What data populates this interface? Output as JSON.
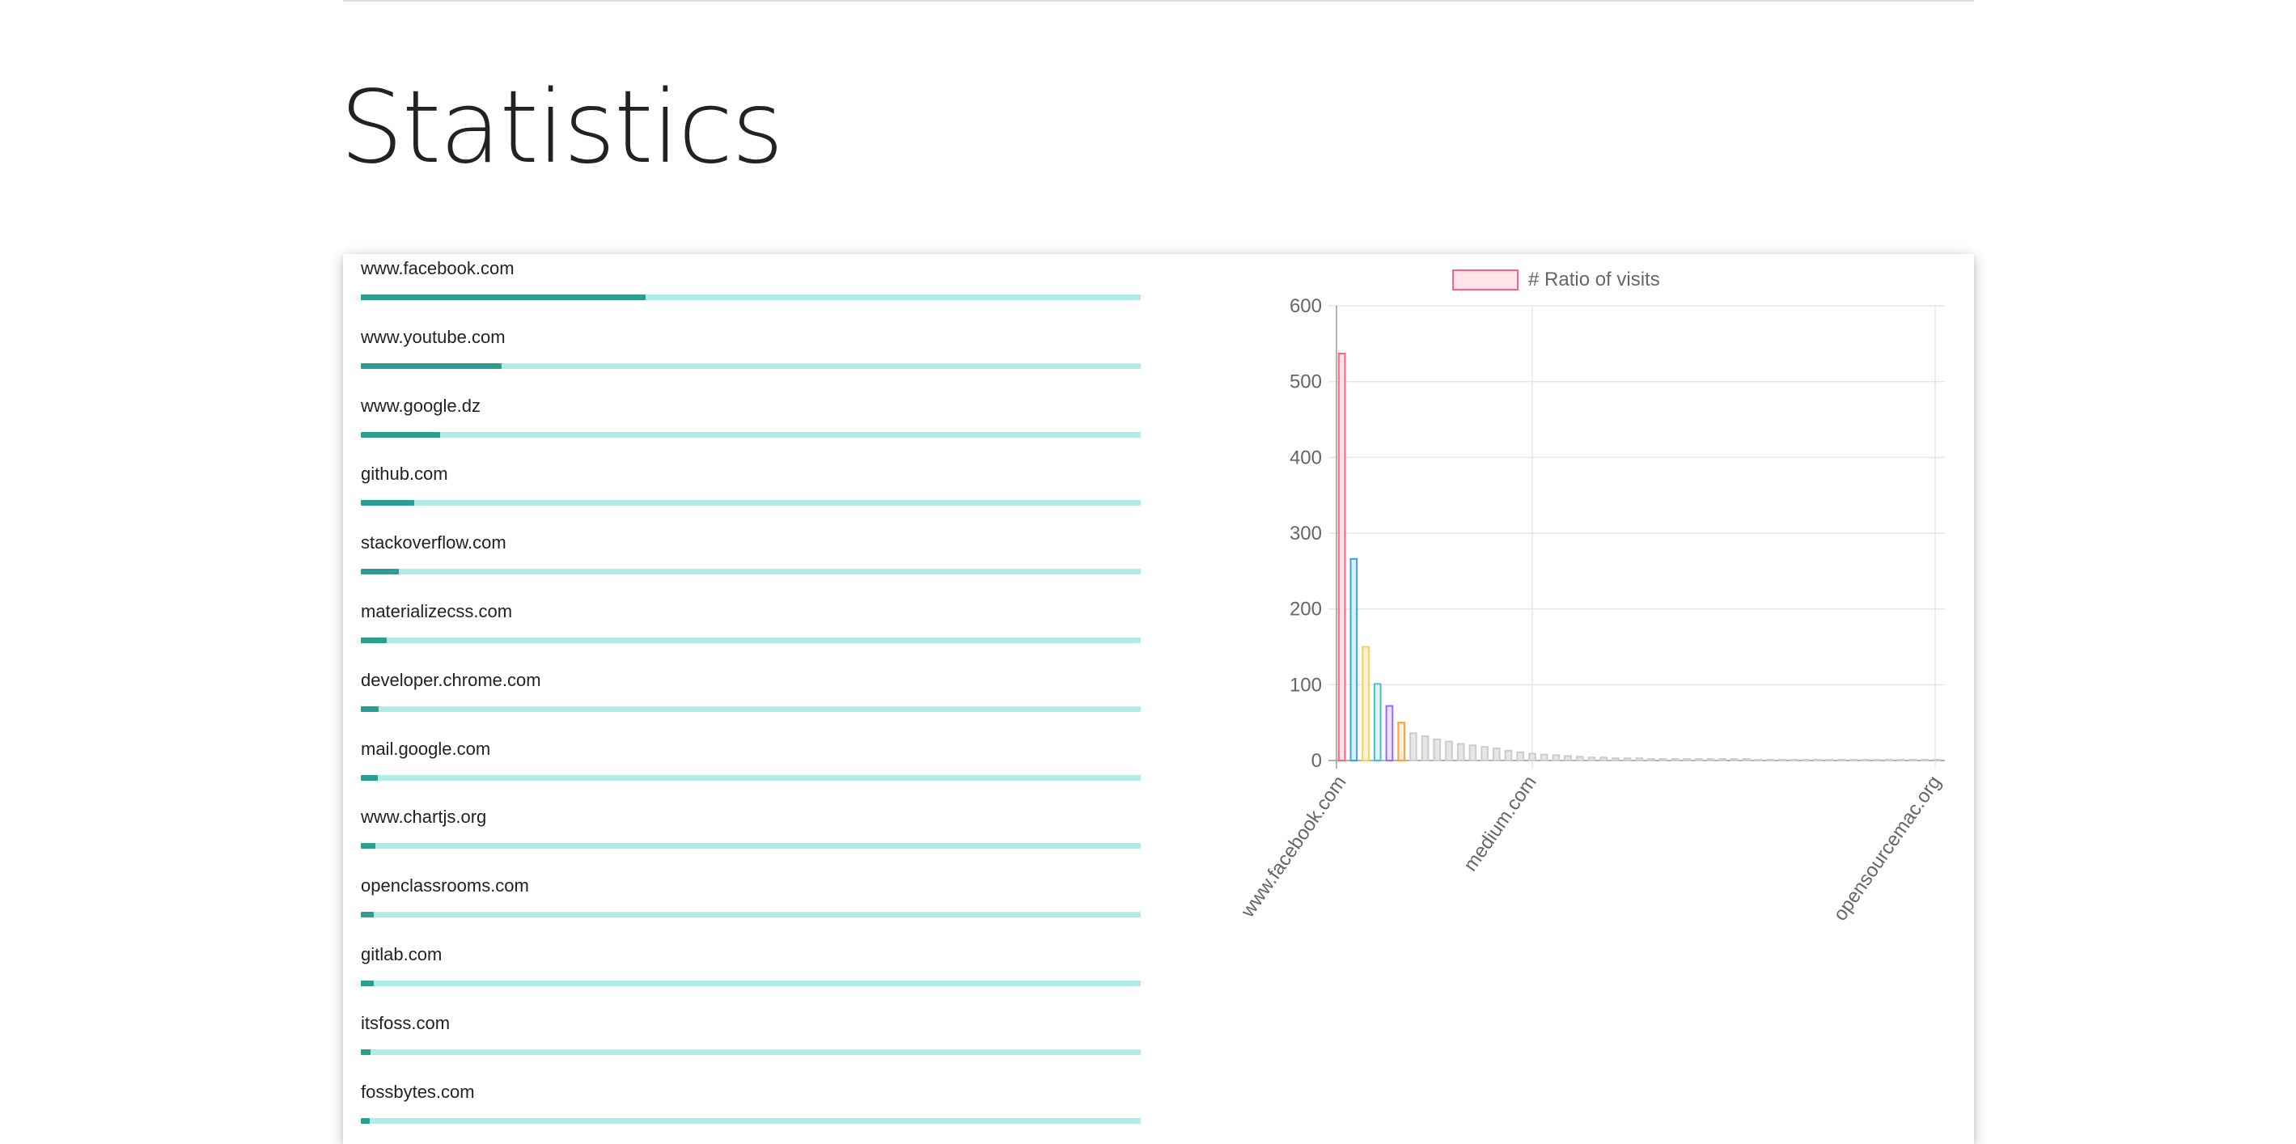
{
  "page": {
    "title": "Statistics"
  },
  "sites": [
    {
      "name": "www.facebook.com",
      "share": 0.365
    },
    {
      "name": "www.youtube.com",
      "share": 0.181
    },
    {
      "name": "www.google.dz",
      "share": 0.102
    },
    {
      "name": "github.com",
      "share": 0.068
    },
    {
      "name": "stackoverflow.com",
      "share": 0.049
    },
    {
      "name": "materializecss.com",
      "share": 0.033
    },
    {
      "name": "developer.chrome.com",
      "share": 0.023
    },
    {
      "name": "mail.google.com",
      "share": 0.022
    },
    {
      "name": "www.chartjs.org",
      "share": 0.019
    },
    {
      "name": "openclassrooms.com",
      "share": 0.017
    },
    {
      "name": "gitlab.com",
      "share": 0.017
    },
    {
      "name": "itsfoss.com",
      "share": 0.012
    },
    {
      "name": "fossbytes.com",
      "share": 0.011
    }
  ],
  "chart_data": {
    "type": "bar",
    "legend": {
      "label": "# Ratio of visits",
      "position": "top"
    },
    "ylim": [
      0,
      600
    ],
    "yticks": [
      "0",
      "100",
      "200",
      "300",
      "400",
      "500",
      "600"
    ],
    "xticks": [
      "www.facebook.com",
      "medium.com",
      "opensourcemac.org"
    ],
    "grid": true,
    "values": [
      537,
      266,
      150,
      101,
      72,
      50,
      36,
      32,
      28,
      25,
      22,
      20,
      18,
      16,
      13,
      11,
      9,
      8,
      7,
      6,
      5,
      4,
      4,
      3,
      3,
      3,
      2,
      2,
      2,
      2,
      2,
      2,
      2,
      2,
      2,
      1,
      1,
      1,
      1,
      1,
      1,
      1,
      1,
      1,
      1,
      1,
      1,
      1,
      1,
      1,
      1
    ],
    "colors": {
      "highlighted": [
        {
          "fill": "#ffe4ea",
          "stroke": "#ff6384"
        },
        {
          "fill": "#dcefff",
          "stroke": "#36a2eb"
        },
        {
          "fill": "#fff3d9",
          "stroke": "#ffce56"
        },
        {
          "fill": "#dff5f5",
          "stroke": "#4bc0c0"
        },
        {
          "fill": "#eee4ff",
          "stroke": "#9966ff"
        },
        {
          "fill": "#ffecd9",
          "stroke": "#ff9f40"
        }
      ],
      "other": {
        "fill": "#e6e6e6",
        "stroke": "#cccccc"
      },
      "legend_fill": "#ffe4ea",
      "legend_stroke": "#ff6384",
      "grid": "#e5e5e5",
      "axis": "#666666"
    }
  }
}
